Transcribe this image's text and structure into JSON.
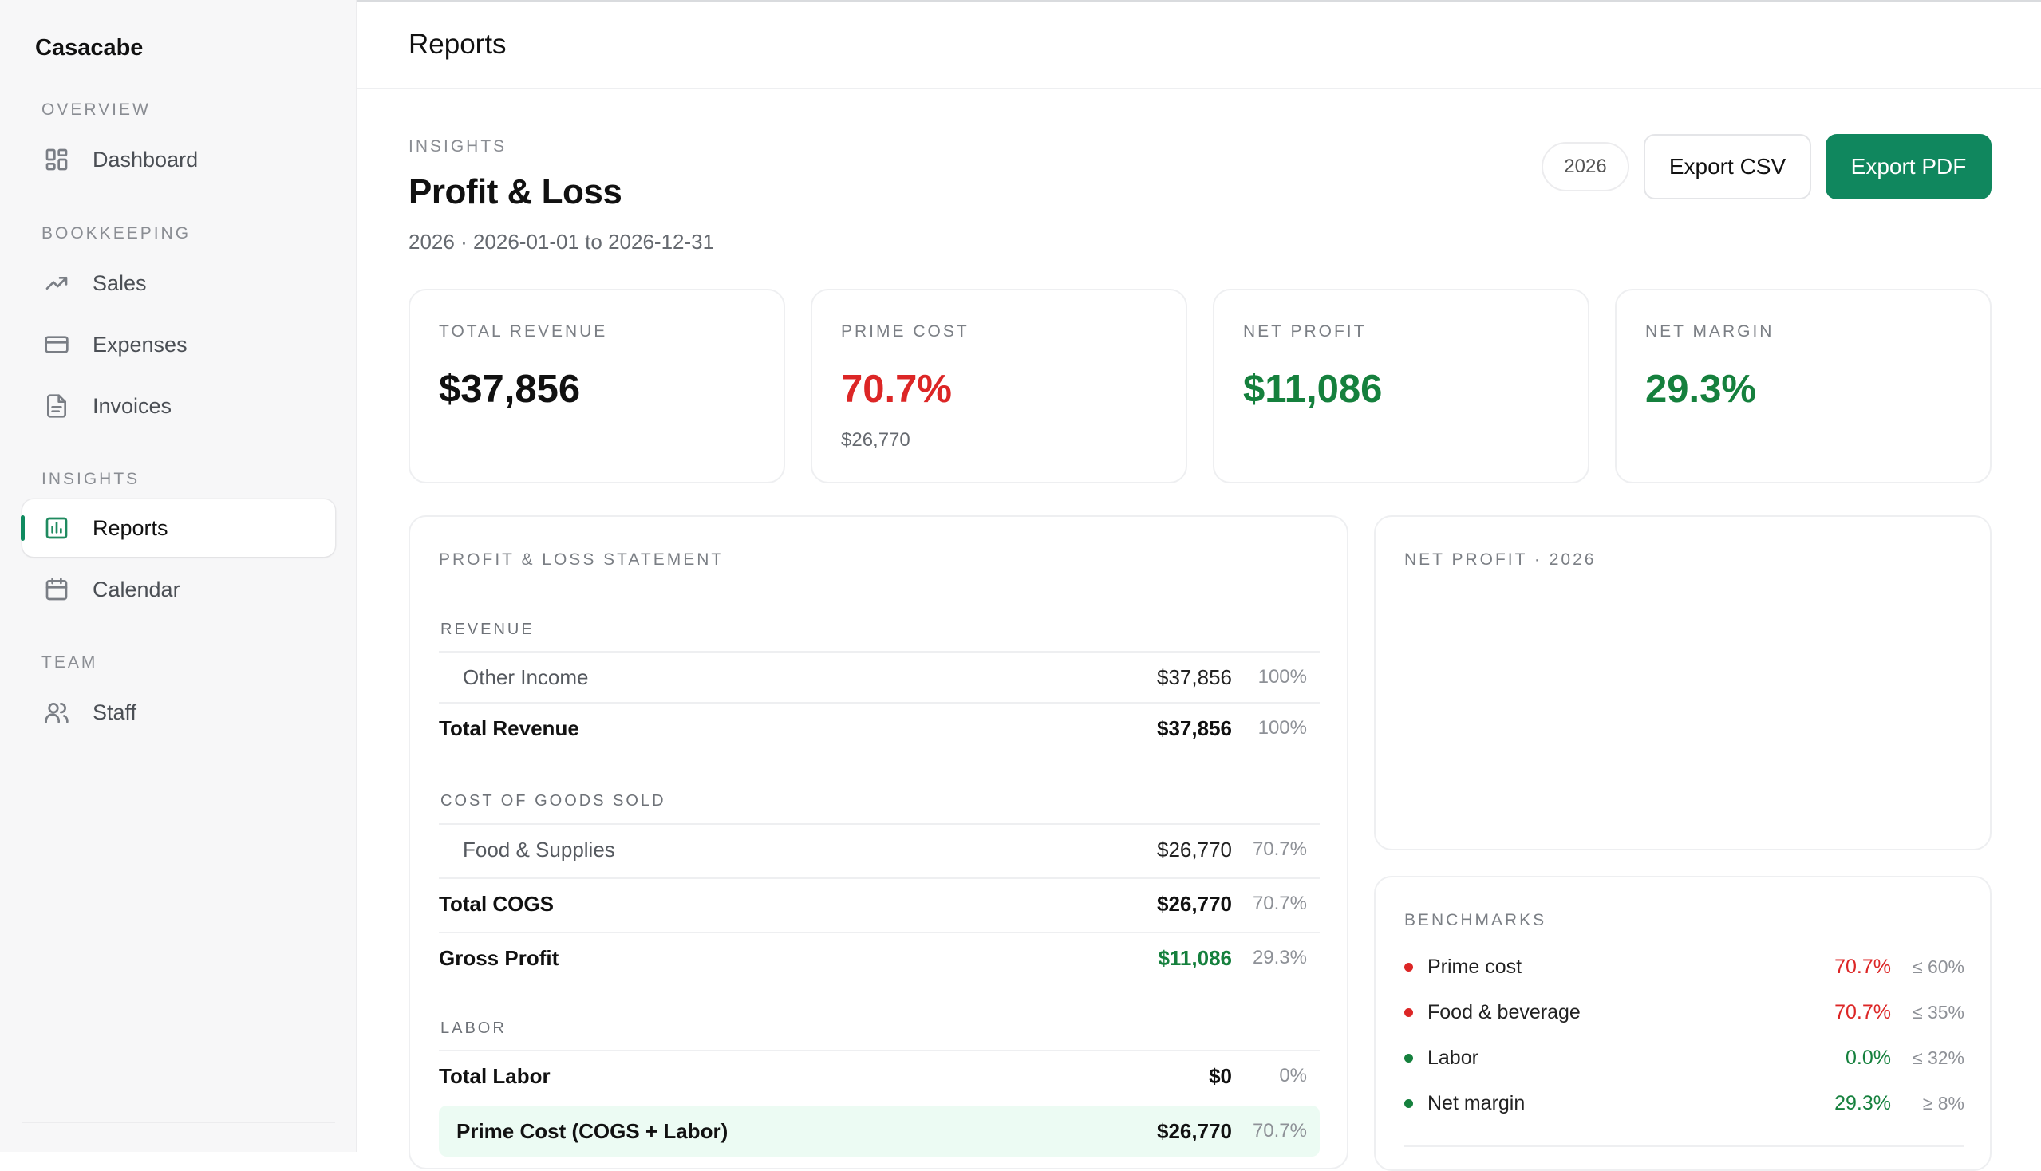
{
  "app": {
    "brand": "Casacabe",
    "header_title": "Reports"
  },
  "sidebar": {
    "sections": [
      {
        "label": "OVERVIEW"
      },
      {
        "label": "BOOKKEEPING"
      },
      {
        "label": "INSIGHTS"
      },
      {
        "label": "TEAM"
      }
    ],
    "items": [
      {
        "label": "Dashboard",
        "icon": "grid-icon"
      },
      {
        "label": "Sales",
        "icon": "trending-icon"
      },
      {
        "label": "Expenses",
        "icon": "card-icon"
      },
      {
        "label": "Invoices",
        "icon": "document-icon"
      },
      {
        "label": "Reports",
        "icon": "bar-chart-icon",
        "active": true
      },
      {
        "label": "Calendar",
        "icon": "calendar-icon"
      },
      {
        "label": "Staff",
        "icon": "users-icon"
      }
    ]
  },
  "page": {
    "eyebrow": "INSIGHTS",
    "title": "Profit & Loss",
    "subtitle": "2026 · 2026-01-01 to 2026-12-31",
    "year": "2026",
    "export_csv": "Export CSV",
    "export_pdf": "Export PDF"
  },
  "kpis": [
    {
      "label": "TOTAL REVENUE",
      "value": "$37,856",
      "sub": ""
    },
    {
      "label": "PRIME COST",
      "value": "70.7%",
      "sub": "$26,770"
    },
    {
      "label": "NET PROFIT",
      "value": "$11,086",
      "sub": ""
    },
    {
      "label": "NET MARGIN",
      "value": "29.3%",
      "sub": ""
    }
  ],
  "statement": {
    "title": "PROFIT & LOSS STATEMENT",
    "groups": {
      "revenue": "REVENUE",
      "cogs": "COST OF GOODS SOLD",
      "labor": "LABOR"
    },
    "rows": {
      "other_income": {
        "label": "Other Income",
        "amount": "$37,856",
        "pct": "100%"
      },
      "total_revenue": {
        "label": "Total Revenue",
        "amount": "$37,856",
        "pct": "100%"
      },
      "food_supplies": {
        "label": "Food & Supplies",
        "amount": "$26,770",
        "pct": "70.7%"
      },
      "total_cogs": {
        "label": "Total COGS",
        "amount": "$26,770",
        "pct": "70.7%"
      },
      "gross_profit": {
        "label": "Gross Profit",
        "amount": "$11,086",
        "pct": "29.3%"
      },
      "total_labor": {
        "label": "Total Labor",
        "amount": "$0",
        "pct": "0%"
      },
      "prime_cost": {
        "label": "Prime Cost (COGS + Labor)",
        "amount": "$26,770",
        "pct": "70.7%"
      }
    }
  },
  "net_profit_chart": {
    "title": "NET PROFIT · 2026"
  },
  "benchmarks": {
    "title": "BENCHMARKS",
    "items": [
      {
        "name": "Prime cost",
        "value": "70.7%",
        "target": "≤ 60%",
        "status": "bad"
      },
      {
        "name": "Food & beverage",
        "value": "70.7%",
        "target": "≤ 35%",
        "status": "bad"
      },
      {
        "name": "Labor",
        "value": "0.0%",
        "target": "≤ 32%",
        "status": "good"
      },
      {
        "name": "Net margin",
        "value": "29.3%",
        "target": "≥ 8%",
        "status": "good"
      }
    ]
  },
  "colors": {
    "accent": "#10875e",
    "bad": "#dc2626",
    "good": "#15803d"
  }
}
